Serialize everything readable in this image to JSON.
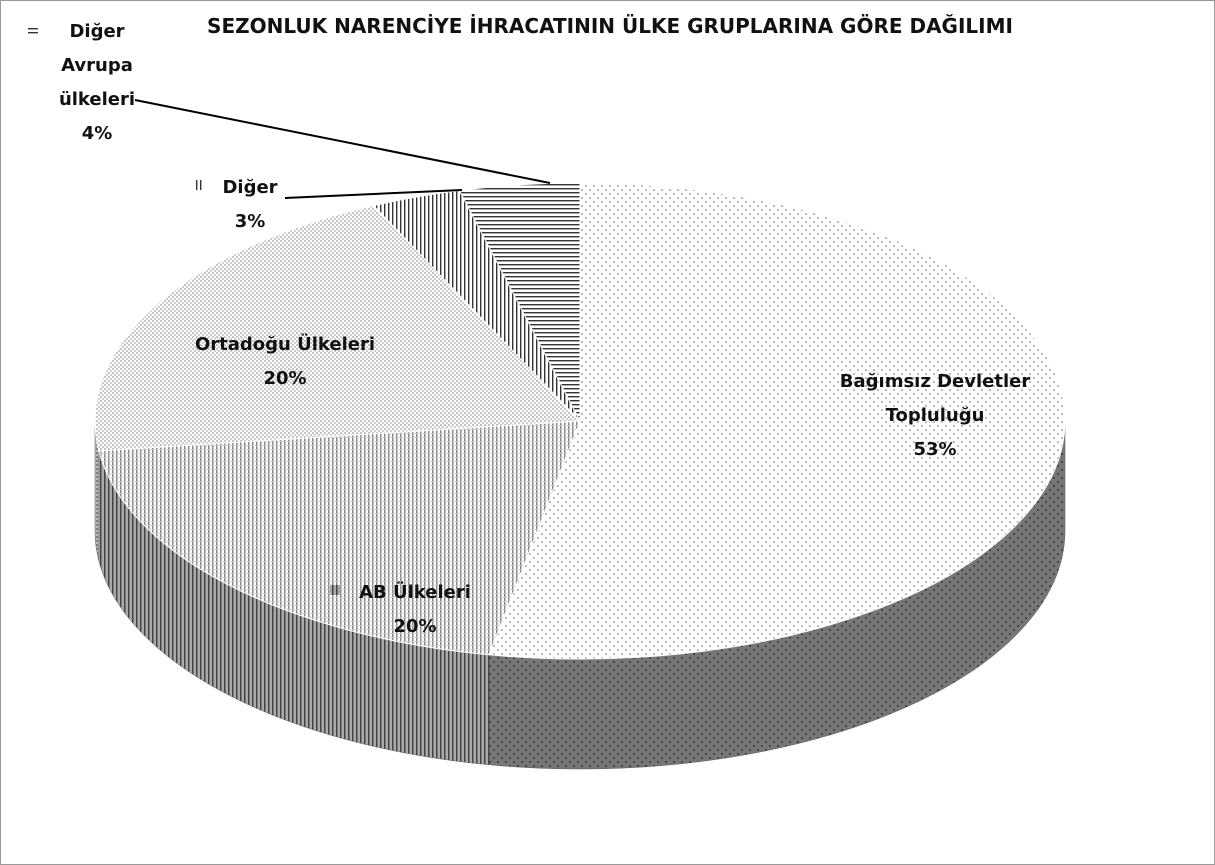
{
  "chart_data": {
    "type": "pie",
    "title": "SEZONLUK NARENCİYE İHRACATININ ÜLKE GRUPLARINA GÖRE DAĞILIMI",
    "categories": [
      "Bağımsız Devletler Topluluğu",
      "AB Ülkeleri",
      "Ortadoğu Ülkeleri",
      "Diğer",
      "Diğer Avrupa ülkeleri"
    ],
    "values": [
      53,
      20,
      20,
      3,
      4
    ],
    "value_labels": [
      "53%",
      "20%",
      "20%",
      "3%",
      "4%"
    ]
  }
}
